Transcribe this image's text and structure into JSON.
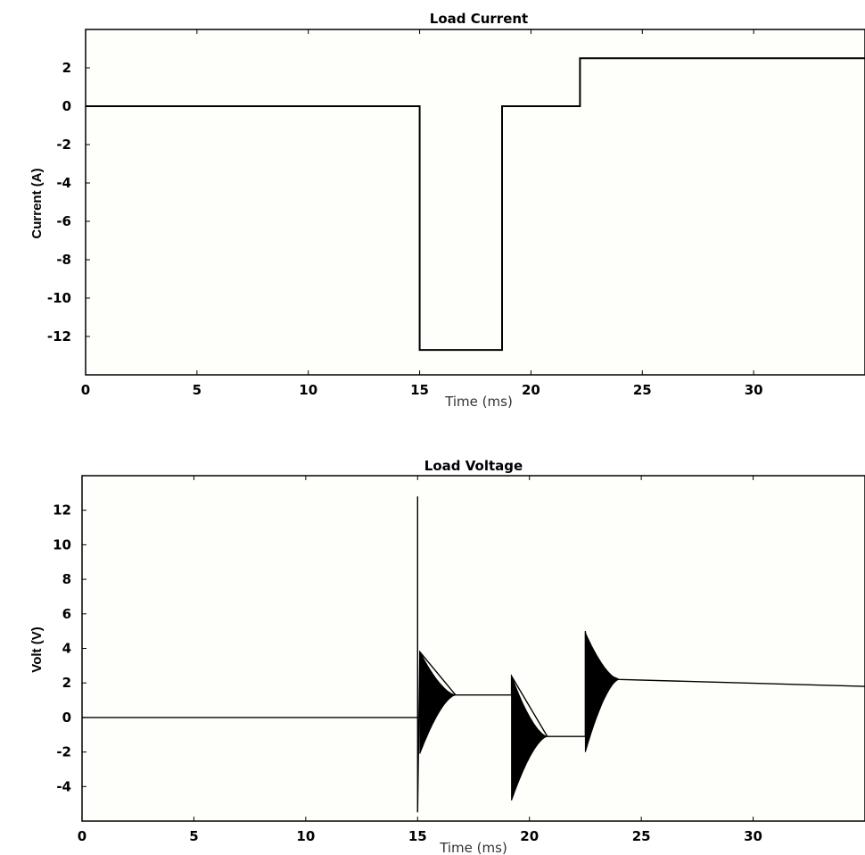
{
  "chart_data": [
    {
      "type": "line",
      "title": "Load Current",
      "xlabel": "Time (ms)",
      "ylabel": "Current (A)",
      "xlim": [
        0,
        35
      ],
      "ylim": [
        -14,
        4
      ],
      "xticks": [
        0,
        5,
        10,
        15,
        20,
        25,
        30
      ],
      "yticks": [
        2,
        0,
        -2,
        -4,
        -6,
        -8,
        -10,
        -12
      ],
      "grid": false,
      "series": [
        {
          "x": [
            0,
            15,
            15,
            18.7,
            18.7,
            22.2,
            22.2,
            35
          ],
          "y": [
            0,
            0,
            -12.7,
            -12.7,
            0,
            0,
            2.5,
            2.5
          ]
        }
      ]
    },
    {
      "type": "line",
      "title": "Load Voltage",
      "xlabel": "Time (ms)",
      "ylabel": "Volt (V)",
      "xlim": [
        0,
        35
      ],
      "ylim": [
        -6,
        14
      ],
      "xticks": [
        0,
        5,
        10,
        15,
        20,
        25,
        30
      ],
      "yticks": [
        12,
        10,
        8,
        6,
        4,
        2,
        0,
        -2,
        -4
      ],
      "grid": false,
      "series": [
        {
          "x": [
            0,
            15,
            15,
            15,
            15.1,
            16.7,
            19.2,
            19.2,
            20.8,
            22.5,
            22.5,
            22.6,
            24.0,
            35
          ],
          "y": [
            0,
            0,
            12.8,
            -5.5,
            3.8,
            1.3,
            1.3,
            2.4,
            -1.1,
            -1.1,
            5.0,
            3.0,
            2.2,
            1.8
          ]
        }
      ],
      "transients": [
        {
          "t0": 15.1,
          "t1": 16.7,
          "upper_start": 3.8,
          "lower_start": -2.1,
          "settle": 1.3
        },
        {
          "t0": 19.2,
          "t1": 20.8,
          "upper_start": 2.4,
          "lower_start": -4.8,
          "settle": -1.1
        },
        {
          "t0": 22.5,
          "t1": 24.0,
          "upper_start": 4.9,
          "lower_start": -2.0,
          "settle": 2.2
        }
      ]
    }
  ]
}
